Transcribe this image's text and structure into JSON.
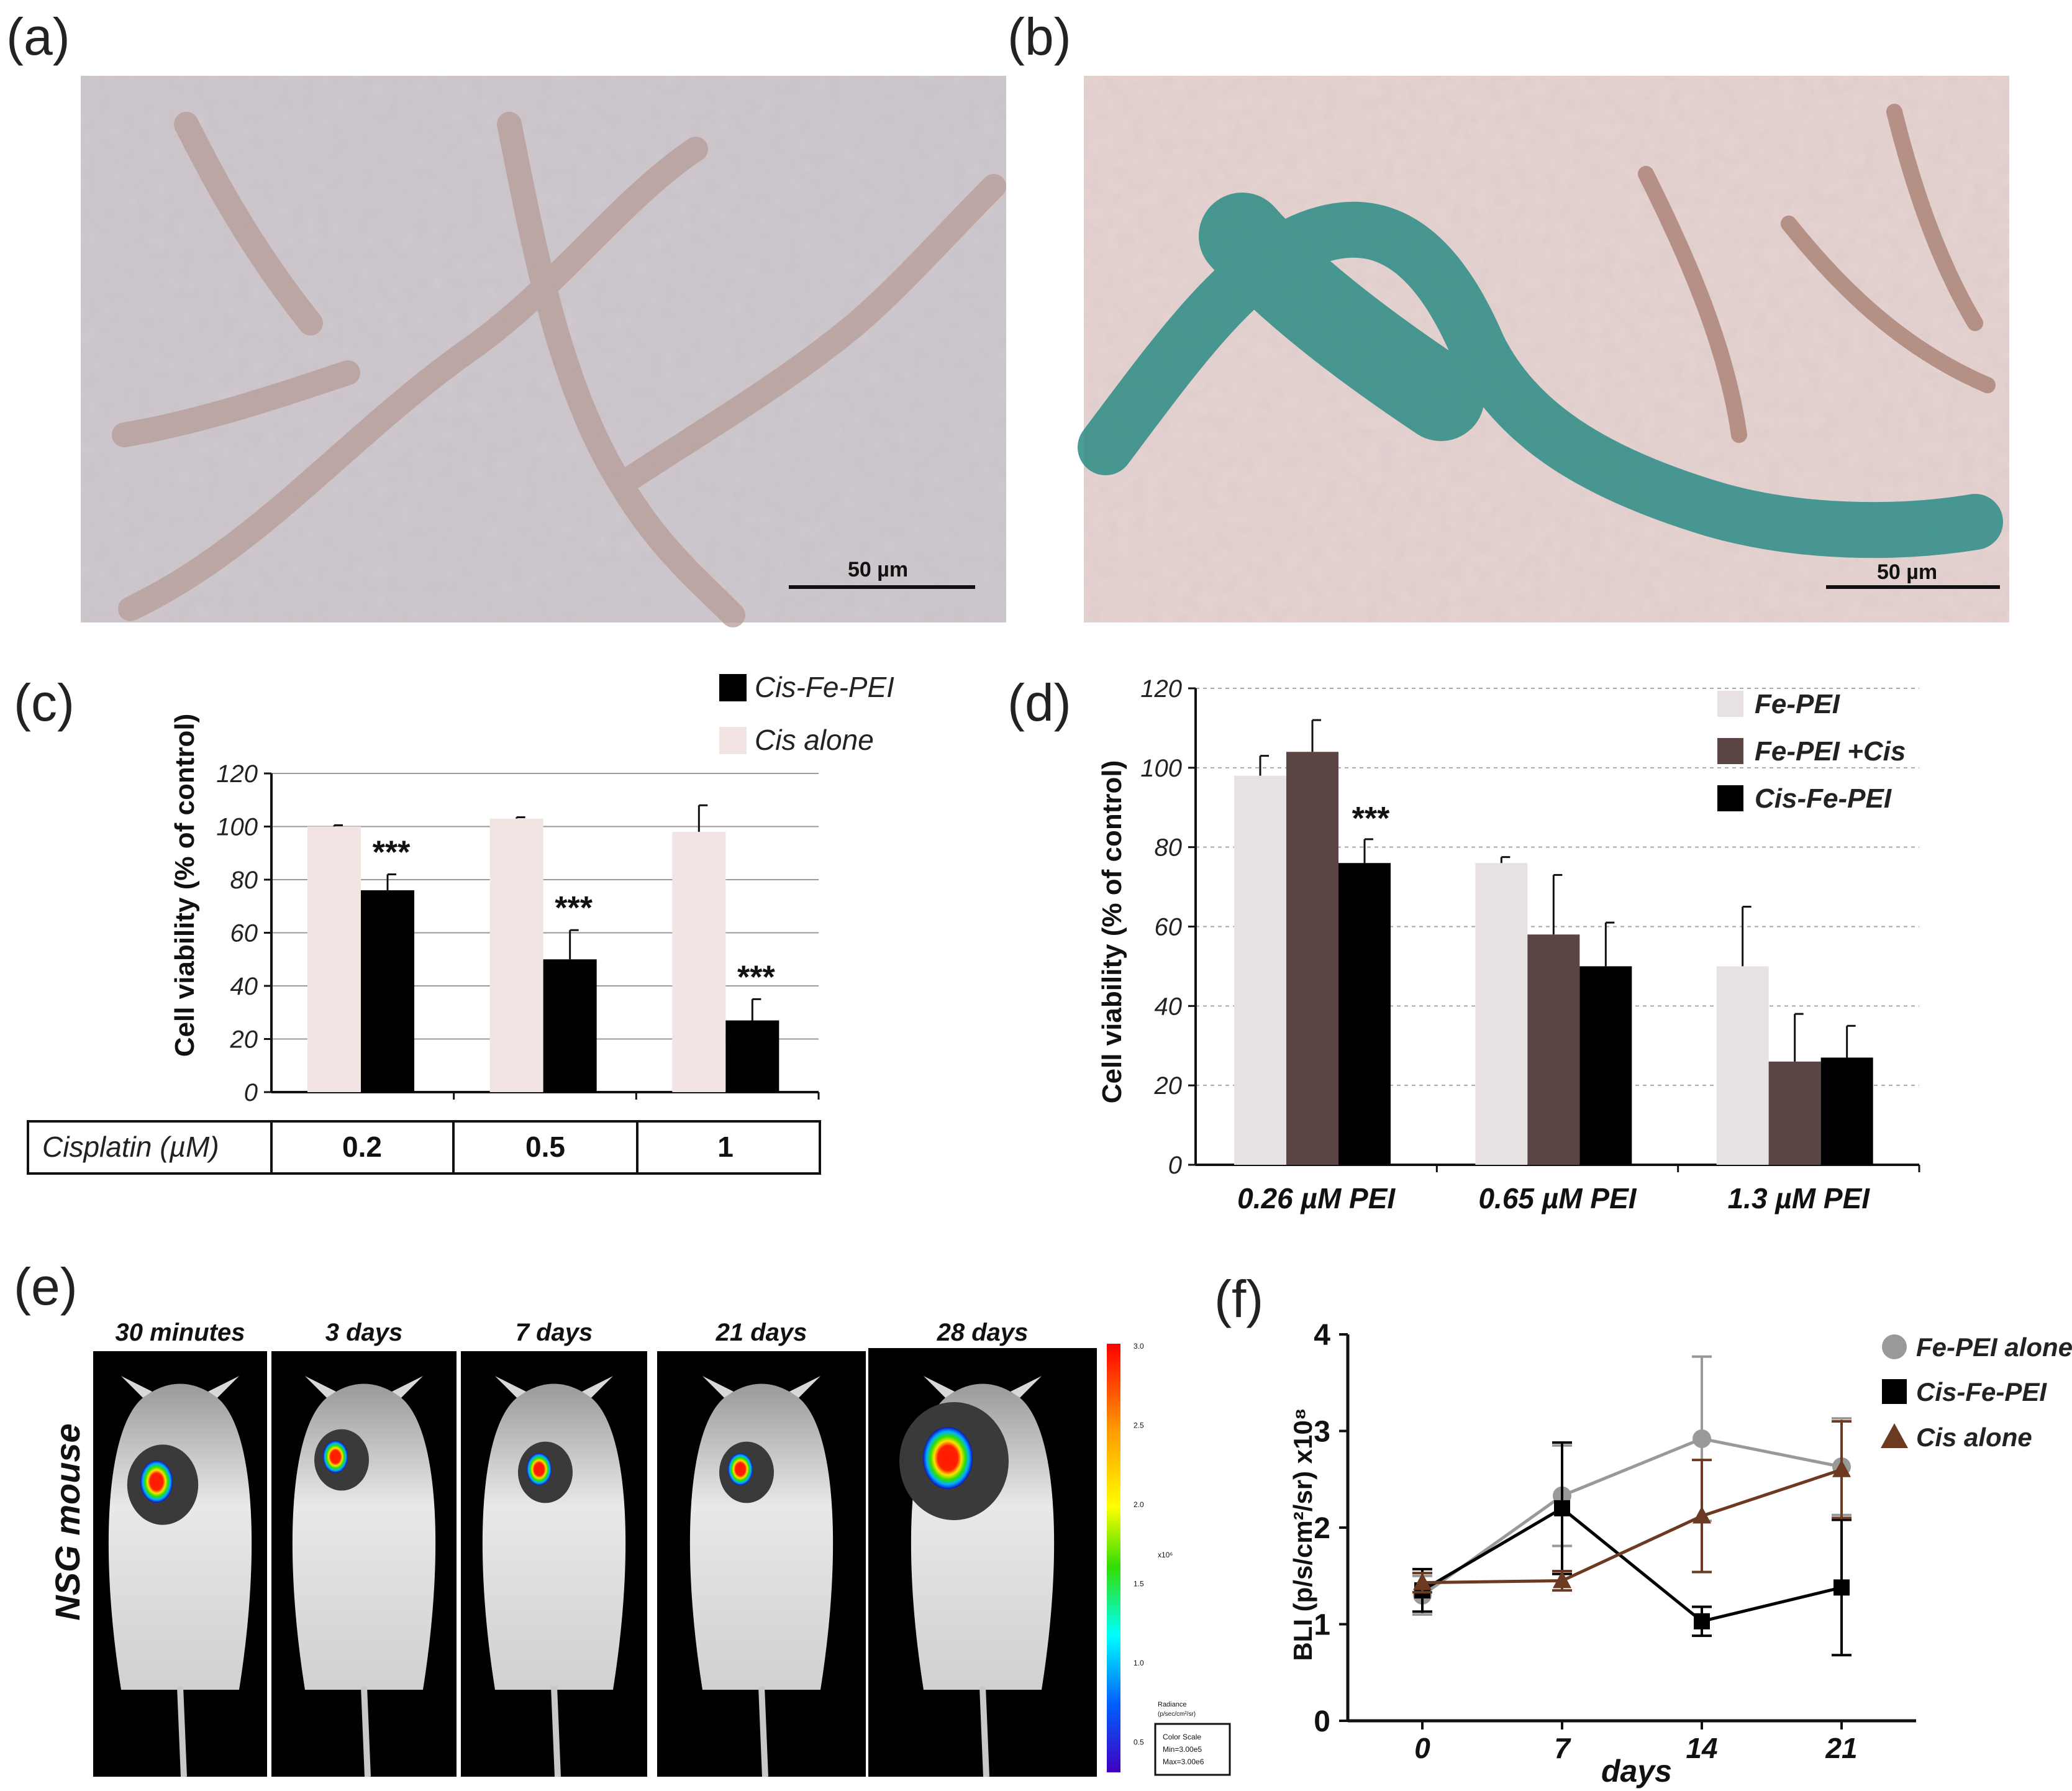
{
  "panels": {
    "a": {
      "label": "(a)",
      "scale_bar": "50 µm"
    },
    "b": {
      "label": "(b)",
      "scale_bar": "50 µm"
    },
    "c": {
      "label": "(c)"
    },
    "d": {
      "label": "(d)"
    },
    "e": {
      "label": "(e)",
      "row_label": "NSG mouse",
      "timepoints": [
        "30 minutes",
        "3 days",
        "7 days",
        "21 days",
        "28 days"
      ],
      "colorbar": {
        "ticks": [
          "3.0",
          "2.5",
          "2.0",
          "1.5",
          "1.0",
          "0.5"
        ],
        "exponent": "x10⁶",
        "title_line1": "Radiance",
        "title_line2": "(p/sec/cm²/sr)",
        "box_line1": "Color Scale",
        "box_line2": "Min=3.00e5",
        "box_line3": "Max=3.00e6"
      }
    },
    "f": {
      "label": "(f)"
    }
  },
  "colors": {
    "cis_alone_bar": "#f2e4e2",
    "fe_pei_bar": "#e7e2e1",
    "fe_pei_cis_bar": "#5a4544",
    "black": "#000000",
    "fe_pei_line": "#999999",
    "cis_alone_line": "#6b3a20"
  },
  "chart_data": [
    {
      "panel": "c",
      "type": "bar",
      "ylabel": "Cell viability (% of control)",
      "ylim": [
        0,
        120
      ],
      "yticks": [
        "0",
        "20",
        "40",
        "60",
        "80",
        "100",
        "120"
      ],
      "table_header": "Cisplatin (µM)",
      "categories": [
        "0.2",
        "0.5",
        "1"
      ],
      "series": [
        {
          "name": "Cis alone",
          "values": [
            100,
            103,
            98
          ],
          "errors": [
            0.5,
            0.5,
            10
          ]
        },
        {
          "name": "Cis-Fe-PEI",
          "values": [
            76,
            50,
            27
          ],
          "errors": [
            6,
            11,
            8
          ]
        }
      ],
      "annotations": [
        "***",
        "***",
        "***"
      ],
      "grid": true,
      "legend": "top-right"
    },
    {
      "panel": "d",
      "type": "bar",
      "ylabel": "Cell viability (% of control)",
      "ylim": [
        0,
        120
      ],
      "yticks": [
        "0",
        "20",
        "40",
        "60",
        "80",
        "100",
        "120"
      ],
      "categories": [
        "0.26 µM PEI",
        "0.65 µM PEI",
        "1.3 µM PEI"
      ],
      "series": [
        {
          "name": "Fe-PEI",
          "values": [
            98,
            76,
            50
          ],
          "errors": [
            5,
            1.5,
            15
          ]
        },
        {
          "name": "Fe-PEI +Cis",
          "values": [
            104,
            58,
            26
          ],
          "errors": [
            8,
            15,
            12
          ]
        },
        {
          "name": "Cis-Fe-PEI",
          "values": [
            76,
            50,
            27
          ],
          "errors": [
            6,
            11,
            8
          ]
        }
      ],
      "annotations": [
        "***"
      ],
      "grid": true,
      "legend": "top-right"
    },
    {
      "panel": "f",
      "type": "line",
      "ylabel": "BLI (p/s/cm²/sr) x10⁸",
      "xlabel": "days",
      "x": [
        0,
        7,
        14,
        21
      ],
      "xticks": [
        "0",
        "7",
        "14",
        "21"
      ],
      "ylim": [
        0,
        4
      ],
      "yticks": [
        "0",
        "1",
        "2",
        "3",
        "4"
      ],
      "series": [
        {
          "name": "Fe-PEI alone",
          "marker": "circle",
          "values": [
            1.3,
            2.33,
            2.92,
            2.63
          ],
          "errors": [
            0.2,
            0.52,
            0.85,
            0.5
          ]
        },
        {
          "name": "Cis-Fe-PEI",
          "marker": "square",
          "values": [
            1.35,
            2.2,
            1.03,
            1.38
          ],
          "errors": [
            0.22,
            0.68,
            0.15,
            0.7
          ]
        },
        {
          "name": "Cis alone",
          "marker": "triangle",
          "values": [
            1.43,
            1.45,
            2.12,
            2.6
          ],
          "errors": [
            0.1,
            0.1,
            0.58,
            0.5
          ]
        }
      ],
      "grid": false,
      "legend": "top-right"
    }
  ]
}
